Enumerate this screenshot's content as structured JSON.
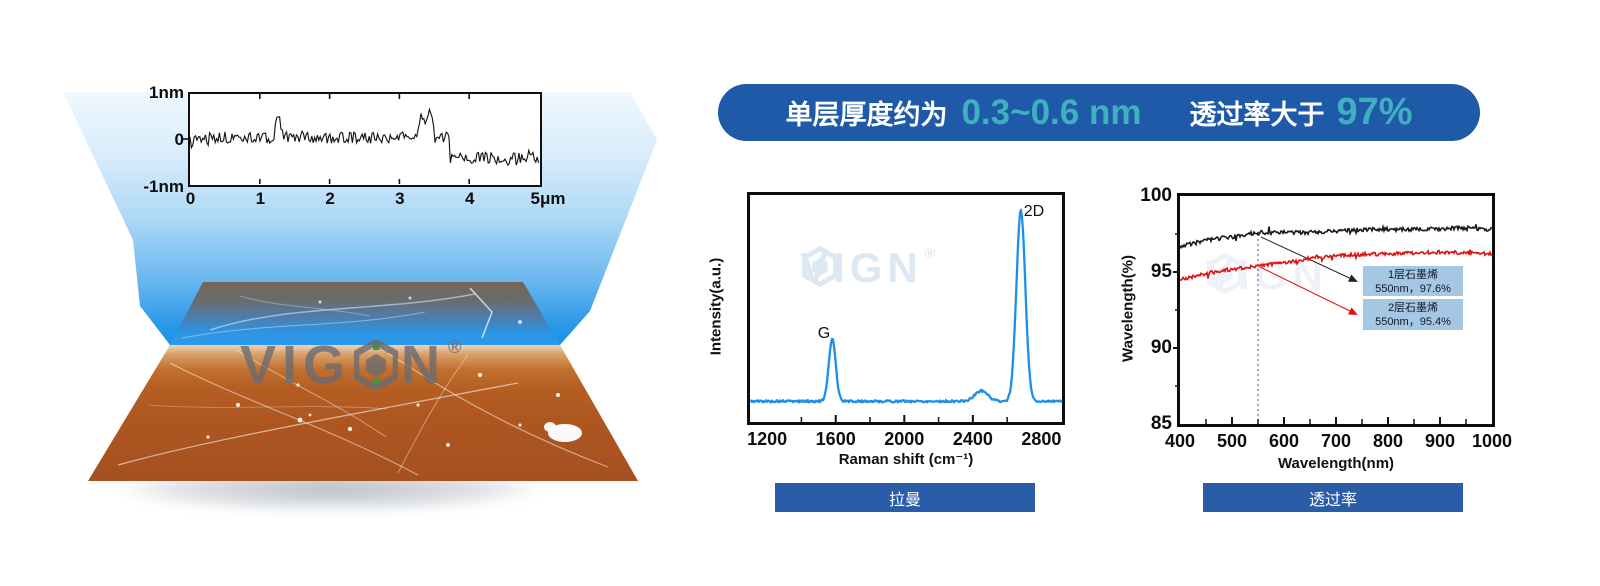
{
  "banner": {
    "prefix": "单层厚度约为",
    "thickness": "0.3~0.6 nm",
    "middle": "透过率大于",
    "percent": "97%"
  },
  "buttons": {
    "raman": "拉曼",
    "transmittance": "透过率"
  },
  "watermark": {
    "left": "VIG",
    "right": "N",
    "reg": "®"
  },
  "colors": {
    "banner_bg": "#1f5aa8",
    "accent_teal": "#3fb0c0",
    "button_bg": "#2a5ca8",
    "raman_line": "#1e8fe8",
    "series_black": "#1a1a1a",
    "series_red": "#dd1212",
    "copper": "#b55e23",
    "beam_blue": "#2e9ce9",
    "annotation_bg": "#a8c8e0"
  },
  "chart_data": [
    {
      "id": "afm_profile",
      "type": "line",
      "title": "AFM height profile",
      "ytick_labels": [
        "1nm",
        "0",
        "-1nm"
      ],
      "xtick_labels": [
        "0",
        "1",
        "2",
        "3",
        "4"
      ],
      "x_end_label": "5μm",
      "xlim": [
        0,
        5
      ],
      "ylim": [
        -1,
        1
      ],
      "baseline_nm": 0.03,
      "step_x_um": 3.72,
      "step_level_nm": -0.42,
      "noise_nm": 0.13,
      "bumps": [
        {
          "x": 1.27,
          "h": 0.45,
          "w": 0.035
        },
        {
          "x": 3.33,
          "h": 0.5,
          "w": 0.05
        },
        {
          "x": 3.44,
          "h": 0.55,
          "w": 0.03
        }
      ],
      "line_color": "#161616"
    },
    {
      "id": "raman",
      "type": "line",
      "xlabel": "Raman shift (cm⁻¹)",
      "ylabel": "Intensity(a.u.)",
      "xlim": [
        1100,
        2920
      ],
      "xticks": [
        1200,
        1600,
        2000,
        2400,
        2800
      ],
      "baseline": 0.03,
      "noise": 0.006,
      "line_color": "#1e8fe8",
      "peaks": [
        {
          "name": "G",
          "center": 1580,
          "height": 0.33,
          "width": 20
        },
        {
          "name": "",
          "center": 2450,
          "height": 0.055,
          "width": 38
        },
        {
          "name": "2D",
          "center": 2680,
          "height": 1.0,
          "width": 26
        }
      ]
    },
    {
      "id": "transmittance",
      "type": "line",
      "xlabel": "Wavelength(nm)",
      "ylabel": "Wavelength(%)",
      "xlim": [
        400,
        1000
      ],
      "ylim": [
        85,
        100
      ],
      "xticks": [
        400,
        500,
        600,
        700,
        800,
        900,
        1000
      ],
      "yticks": [
        85,
        90,
        95,
        100
      ],
      "marker_x": 550,
      "series": [
        {
          "name": "1层石墨烯",
          "color": "#1a1a1a",
          "noise": 0.13,
          "points": [
            [
              400,
              96.7
            ],
            [
              450,
              97.1
            ],
            [
              500,
              97.3
            ],
            [
              550,
              97.6
            ],
            [
              650,
              97.6
            ],
            [
              750,
              97.8
            ],
            [
              850,
              97.8
            ],
            [
              950,
              97.9
            ],
            [
              1000,
              97.8
            ]
          ]
        },
        {
          "name": "2层石墨烯",
          "color": "#dd1212",
          "noise": 0.12,
          "points": [
            [
              400,
              94.5
            ],
            [
              450,
              94.9
            ],
            [
              500,
              95.2
            ],
            [
              550,
              95.4
            ],
            [
              600,
              95.6
            ],
            [
              650,
              95.9
            ],
            [
              700,
              96.1
            ],
            [
              800,
              96.2
            ],
            [
              900,
              96.3
            ],
            [
              1000,
              96.2
            ]
          ]
        }
      ],
      "annotations": [
        {
          "line1": "1层石墨烯",
          "line2": "550nm，97.6%"
        },
        {
          "line1": "2层石墨烯",
          "line2": "550nm，95.4%"
        }
      ]
    }
  ]
}
